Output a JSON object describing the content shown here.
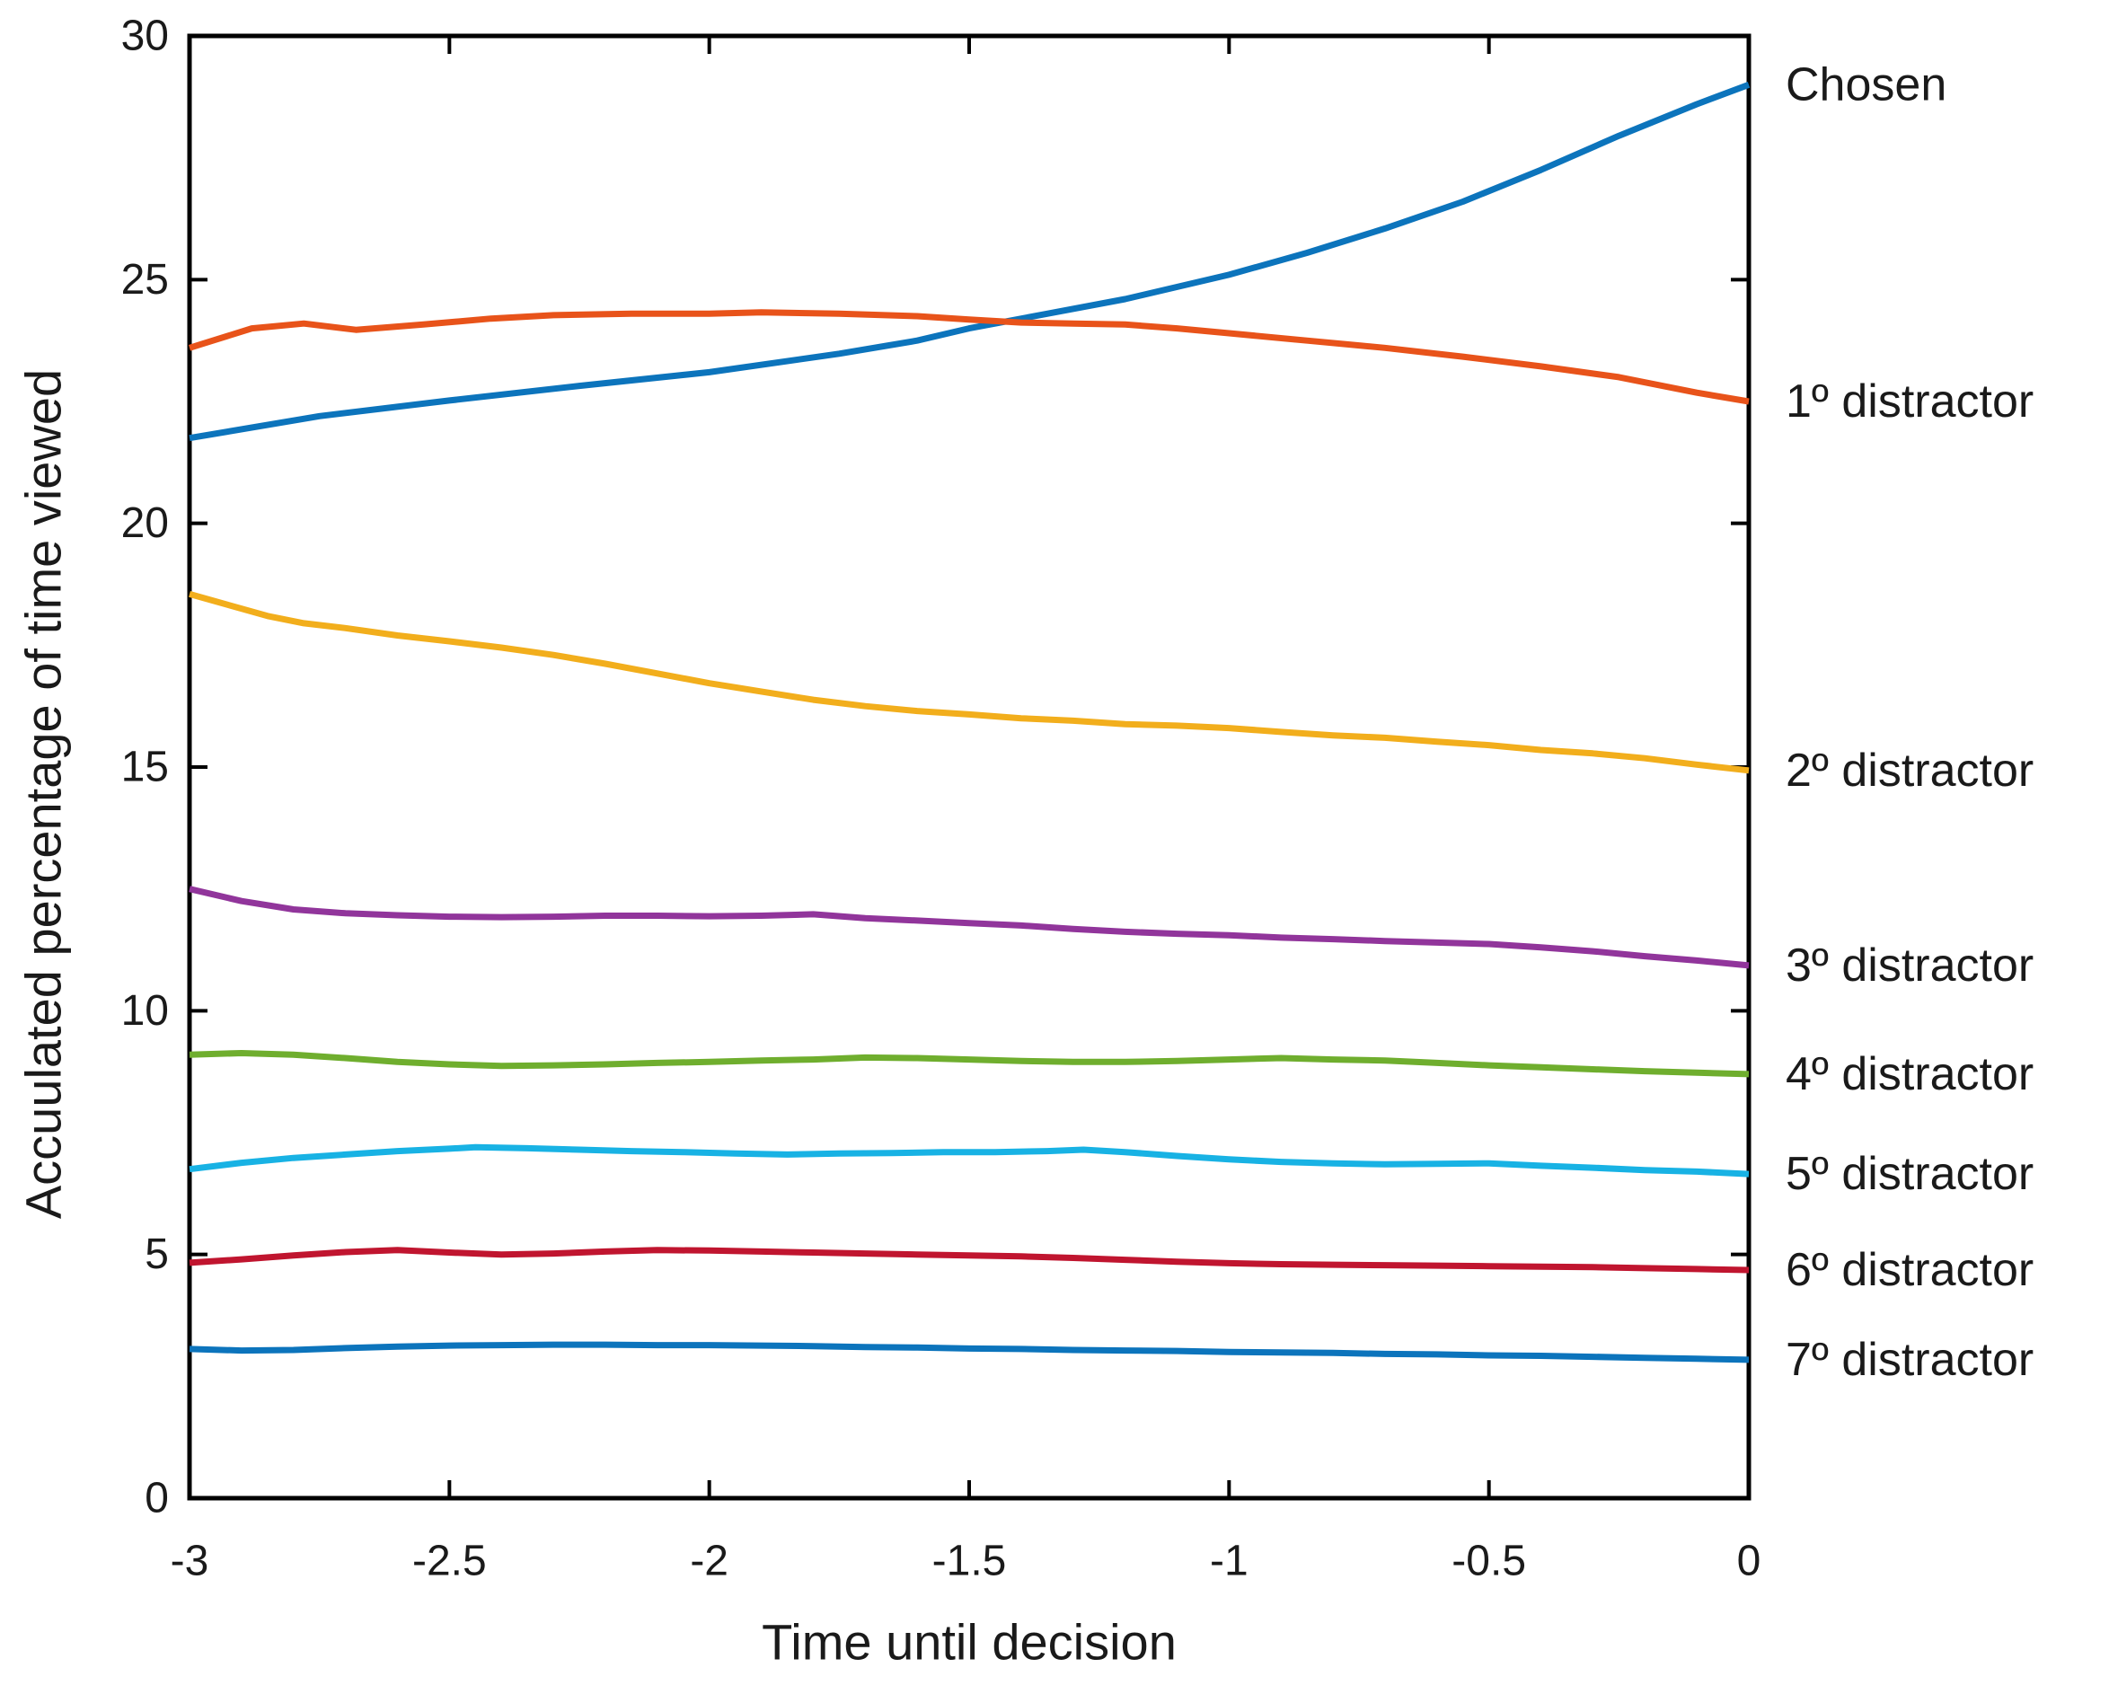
{
  "figure": {
    "background": "#ffffff",
    "axis_color": "#000000",
    "text_color": "#1a1a1a"
  },
  "chart_data": {
    "type": "line",
    "title": "",
    "xlabel": "Time until decision",
    "ylabel": "Accuulated percentage of time viewed",
    "xlim": [
      -3,
      0
    ],
    "ylim": [
      0,
      30
    ],
    "xticks": [
      -3,
      -2.5,
      -2,
      -1.5,
      -1,
      -0.5,
      0
    ],
    "xtick_labels": [
      "-3",
      "-2.5",
      "-2",
      "-1.5",
      "-1",
      "-0.5",
      "0"
    ],
    "yticks": [
      0,
      5,
      10,
      15,
      20,
      25,
      30
    ],
    "ytick_labels": [
      "0",
      "5",
      "10",
      "15",
      "20",
      "25",
      "30"
    ],
    "grid": false,
    "legend_position": "right-outside-line-end-labels",
    "series": [
      {
        "key": "chosen",
        "label": "Chosen",
        "color": "#0C74BC",
        "points": [
          [
            -3,
            21.75
          ],
          [
            -2.75,
            22.2
          ],
          [
            -2.5,
            22.52
          ],
          [
            -2.25,
            22.82
          ],
          [
            -2,
            23.1
          ],
          [
            -1.75,
            23.48
          ],
          [
            -1.6,
            23.75
          ],
          [
            -1.5,
            24.0
          ],
          [
            -1.35,
            24.3
          ],
          [
            -1.2,
            24.6
          ],
          [
            -1,
            25.1
          ],
          [
            -0.85,
            25.55
          ],
          [
            -0.7,
            26.05
          ],
          [
            -0.55,
            26.6
          ],
          [
            -0.4,
            27.25
          ],
          [
            -0.25,
            27.95
          ],
          [
            -0.1,
            28.6
          ],
          [
            0,
            29.0
          ]
        ]
      },
      {
        "key": "distractor-1",
        "label": "1º distractor",
        "color": "#E8531A",
        "points": [
          [
            -3,
            23.6
          ],
          [
            -2.88,
            24.0
          ],
          [
            -2.78,
            24.1
          ],
          [
            -2.68,
            23.97
          ],
          [
            -2.55,
            24.08
          ],
          [
            -2.42,
            24.2
          ],
          [
            -2.3,
            24.27
          ],
          [
            -2.15,
            24.3
          ],
          [
            -2,
            24.3
          ],
          [
            -1.9,
            24.33
          ],
          [
            -1.75,
            24.3
          ],
          [
            -1.6,
            24.25
          ],
          [
            -1.5,
            24.18
          ],
          [
            -1.4,
            24.12
          ],
          [
            -1.3,
            24.1
          ],
          [
            -1.2,
            24.08
          ],
          [
            -1.1,
            24.0
          ],
          [
            -1,
            23.9
          ],
          [
            -0.85,
            23.75
          ],
          [
            -0.7,
            23.6
          ],
          [
            -0.55,
            23.42
          ],
          [
            -0.4,
            23.22
          ],
          [
            -0.25,
            23.0
          ],
          [
            -0.1,
            22.68
          ],
          [
            0,
            22.5
          ]
        ]
      },
      {
        "key": "distractor-2",
        "label": "2º distractor",
        "color": "#F2AE1C",
        "points": [
          [
            -3,
            18.55
          ],
          [
            -2.85,
            18.1
          ],
          [
            -2.78,
            17.95
          ],
          [
            -2.7,
            17.85
          ],
          [
            -2.6,
            17.7
          ],
          [
            -2.5,
            17.58
          ],
          [
            -2.4,
            17.45
          ],
          [
            -2.3,
            17.3
          ],
          [
            -2.2,
            17.12
          ],
          [
            -2.1,
            16.92
          ],
          [
            -2,
            16.72
          ],
          [
            -1.9,
            16.55
          ],
          [
            -1.8,
            16.38
          ],
          [
            -1.7,
            16.25
          ],
          [
            -1.6,
            16.15
          ],
          [
            -1.5,
            16.08
          ],
          [
            -1.4,
            16.0
          ],
          [
            -1.3,
            15.95
          ],
          [
            -1.2,
            15.88
          ],
          [
            -1.1,
            15.85
          ],
          [
            -1,
            15.8
          ],
          [
            -0.9,
            15.72
          ],
          [
            -0.8,
            15.65
          ],
          [
            -0.7,
            15.6
          ],
          [
            -0.6,
            15.52
          ],
          [
            -0.5,
            15.45
          ],
          [
            -0.4,
            15.35
          ],
          [
            -0.3,
            15.28
          ],
          [
            -0.2,
            15.18
          ],
          [
            -0.1,
            15.05
          ],
          [
            0,
            14.93
          ]
        ]
      },
      {
        "key": "distractor-3",
        "label": "3º distractor",
        "color": "#91359B",
        "points": [
          [
            -3,
            12.5
          ],
          [
            -2.9,
            12.25
          ],
          [
            -2.8,
            12.08
          ],
          [
            -2.7,
            12.0
          ],
          [
            -2.6,
            11.96
          ],
          [
            -2.5,
            11.93
          ],
          [
            -2.4,
            11.92
          ],
          [
            -2.3,
            11.93
          ],
          [
            -2.2,
            11.95
          ],
          [
            -2.1,
            11.95
          ],
          [
            -2,
            11.94
          ],
          [
            -1.9,
            11.95
          ],
          [
            -1.8,
            11.98
          ],
          [
            -1.7,
            11.9
          ],
          [
            -1.6,
            11.85
          ],
          [
            -1.5,
            11.8
          ],
          [
            -1.4,
            11.75
          ],
          [
            -1.3,
            11.68
          ],
          [
            -1.2,
            11.62
          ],
          [
            -1.1,
            11.58
          ],
          [
            -1,
            11.55
          ],
          [
            -0.9,
            11.5
          ],
          [
            -0.8,
            11.47
          ],
          [
            -0.7,
            11.43
          ],
          [
            -0.6,
            11.4
          ],
          [
            -0.5,
            11.37
          ],
          [
            -0.4,
            11.3
          ],
          [
            -0.3,
            11.22
          ],
          [
            -0.2,
            11.12
          ],
          [
            -0.1,
            11.03
          ],
          [
            0,
            10.93
          ]
        ]
      },
      {
        "key": "distractor-4",
        "label": "4º distractor",
        "color": "#6FAE2E",
        "points": [
          [
            -3,
            9.1
          ],
          [
            -2.9,
            9.13
          ],
          [
            -2.8,
            9.1
          ],
          [
            -2.7,
            9.03
          ],
          [
            -2.6,
            8.95
          ],
          [
            -2.5,
            8.9
          ],
          [
            -2.4,
            8.87
          ],
          [
            -2.3,
            8.88
          ],
          [
            -2.2,
            8.9
          ],
          [
            -2.1,
            8.93
          ],
          [
            -2,
            8.95
          ],
          [
            -1.9,
            8.98
          ],
          [
            -1.8,
            9.0
          ],
          [
            -1.7,
            9.04
          ],
          [
            -1.6,
            9.03
          ],
          [
            -1.5,
            9.0
          ],
          [
            -1.4,
            8.97
          ],
          [
            -1.3,
            8.95
          ],
          [
            -1.2,
            8.95
          ],
          [
            -1.1,
            8.97
          ],
          [
            -1,
            9.0
          ],
          [
            -0.9,
            9.03
          ],
          [
            -0.8,
            9.0
          ],
          [
            -0.7,
            8.98
          ],
          [
            -0.6,
            8.93
          ],
          [
            -0.5,
            8.88
          ],
          [
            -0.4,
            8.84
          ],
          [
            -0.3,
            8.8
          ],
          [
            -0.2,
            8.76
          ],
          [
            -0.1,
            8.73
          ],
          [
            0,
            8.7
          ]
        ]
      },
      {
        "key": "distractor-5",
        "label": "5º distractor",
        "color": "#18B2E4",
        "points": [
          [
            -3,
            6.75
          ],
          [
            -2.9,
            6.88
          ],
          [
            -2.8,
            6.98
          ],
          [
            -2.7,
            7.05
          ],
          [
            -2.6,
            7.12
          ],
          [
            -2.5,
            7.17
          ],
          [
            -2.45,
            7.2
          ],
          [
            -2.35,
            7.18
          ],
          [
            -2.25,
            7.15
          ],
          [
            -2.15,
            7.12
          ],
          [
            -2.05,
            7.1
          ],
          [
            -1.95,
            7.07
          ],
          [
            -1.85,
            7.05
          ],
          [
            -1.75,
            7.07
          ],
          [
            -1.65,
            7.08
          ],
          [
            -1.55,
            7.1
          ],
          [
            -1.45,
            7.1
          ],
          [
            -1.35,
            7.12
          ],
          [
            -1.28,
            7.15
          ],
          [
            -1.2,
            7.1
          ],
          [
            -1.1,
            7.02
          ],
          [
            -1,
            6.95
          ],
          [
            -0.9,
            6.9
          ],
          [
            -0.8,
            6.87
          ],
          [
            -0.7,
            6.85
          ],
          [
            -0.6,
            6.86
          ],
          [
            -0.5,
            6.87
          ],
          [
            -0.4,
            6.82
          ],
          [
            -0.3,
            6.78
          ],
          [
            -0.2,
            6.73
          ],
          [
            -0.1,
            6.7
          ],
          [
            0,
            6.65
          ]
        ]
      },
      {
        "key": "distractor-6",
        "label": "6º distractor",
        "color": "#C0152F",
        "points": [
          [
            -3,
            4.83
          ],
          [
            -2.9,
            4.9
          ],
          [
            -2.8,
            4.98
          ],
          [
            -2.7,
            5.05
          ],
          [
            -2.6,
            5.09
          ],
          [
            -2.5,
            5.04
          ],
          [
            -2.4,
            5.0
          ],
          [
            -2.3,
            5.02
          ],
          [
            -2.2,
            5.06
          ],
          [
            -2.1,
            5.09
          ],
          [
            -2,
            5.08
          ],
          [
            -1.9,
            5.06
          ],
          [
            -1.8,
            5.04
          ],
          [
            -1.7,
            5.02
          ],
          [
            -1.6,
            5.0
          ],
          [
            -1.5,
            4.98
          ],
          [
            -1.4,
            4.96
          ],
          [
            -1.3,
            4.93
          ],
          [
            -1.2,
            4.89
          ],
          [
            -1.1,
            4.85
          ],
          [
            -1,
            4.82
          ],
          [
            -0.9,
            4.8
          ],
          [
            -0.8,
            4.79
          ],
          [
            -0.7,
            4.78
          ],
          [
            -0.6,
            4.77
          ],
          [
            -0.5,
            4.76
          ],
          [
            -0.4,
            4.75
          ],
          [
            -0.3,
            4.74
          ],
          [
            -0.2,
            4.72
          ],
          [
            -0.1,
            4.7
          ],
          [
            0,
            4.68
          ]
        ]
      },
      {
        "key": "distractor-7",
        "label": "7º distractor",
        "color": "#0C74BC",
        "points": [
          [
            -3,
            3.06
          ],
          [
            -2.9,
            3.03
          ],
          [
            -2.8,
            3.04
          ],
          [
            -2.7,
            3.08
          ],
          [
            -2.6,
            3.11
          ],
          [
            -2.5,
            3.13
          ],
          [
            -2.4,
            3.14
          ],
          [
            -2.3,
            3.15
          ],
          [
            -2.2,
            3.15
          ],
          [
            -2.1,
            3.14
          ],
          [
            -2,
            3.14
          ],
          [
            -1.9,
            3.13
          ],
          [
            -1.8,
            3.12
          ],
          [
            -1.7,
            3.1
          ],
          [
            -1.6,
            3.09
          ],
          [
            -1.5,
            3.07
          ],
          [
            -1.4,
            3.06
          ],
          [
            -1.3,
            3.04
          ],
          [
            -1.2,
            3.03
          ],
          [
            -1.1,
            3.02
          ],
          [
            -1,
            3.0
          ],
          [
            -0.9,
            2.99
          ],
          [
            -0.8,
            2.98
          ],
          [
            -0.7,
            2.96
          ],
          [
            -0.6,
            2.95
          ],
          [
            -0.5,
            2.93
          ],
          [
            -0.4,
            2.92
          ],
          [
            -0.3,
            2.9
          ],
          [
            -0.2,
            2.88
          ],
          [
            -0.1,
            2.86
          ],
          [
            0,
            2.84
          ]
        ]
      }
    ]
  }
}
